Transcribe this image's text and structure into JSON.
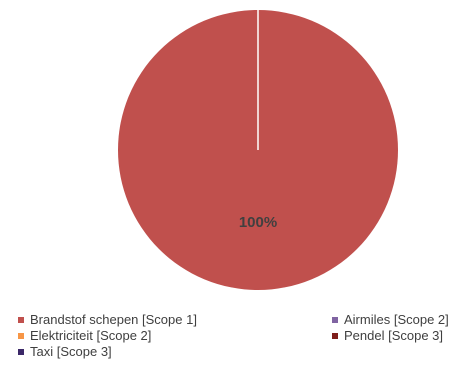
{
  "chart_data": {
    "type": "pie",
    "slices": [
      {
        "label": "Brandstof schepen [Scope 1]",
        "value": 100,
        "color": "#c0504d"
      },
      {
        "label": "Airmiles [Scope 2]",
        "value": 0,
        "color": "#8064a2"
      },
      {
        "label": "Elektriciteit [Scope 2]",
        "value": 0,
        "color": "#f79646"
      },
      {
        "label": "Pendel [Scope 3]",
        "value": 0,
        "color": "#7f1e1c"
      },
      {
        "label": "Taxi [Scope 3]",
        "value": 0,
        "color": "#3b2868"
      }
    ],
    "data_label": "100%",
    "legend_position": "bottom"
  }
}
